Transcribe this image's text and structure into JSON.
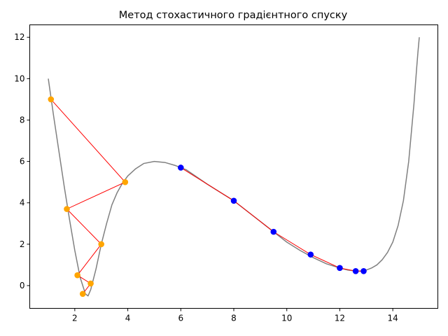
{
  "chart_data": {
    "type": "line",
    "title": "Метод стохастичного градієнтного спуску",
    "xlabel": "",
    "ylabel": "",
    "xlim": [
      0.3,
      15.7
    ],
    "ylim": [
      -1.1,
      12.6
    ],
    "xticks": [
      2,
      4,
      6,
      8,
      10,
      12,
      14
    ],
    "yticks": [
      0,
      2,
      4,
      6,
      8,
      10,
      12
    ],
    "grid": false,
    "legend": "none",
    "colors": {
      "curve": "#808080",
      "path": "#ff0000",
      "path_a_points": "#ffa500",
      "path_b_points": "#0000ff"
    },
    "series": [
      {
        "x": [
          1.0,
          1.2,
          1.4,
          1.6,
          1.8,
          2.0,
          2.2,
          2.4,
          2.5,
          2.6,
          2.8,
          3.0,
          3.2,
          3.4,
          3.6,
          3.8,
          4.0,
          4.3,
          4.6,
          5.0,
          5.4,
          5.8,
          6.2,
          6.6,
          7.0,
          7.5,
          8.0,
          8.5,
          9.0,
          9.5,
          10.0,
          10.5,
          11.0,
          11.5,
          12.0,
          12.3,
          12.6,
          12.8,
          13.0,
          13.2,
          13.4,
          13.6,
          13.8,
          14.0,
          14.2,
          14.4,
          14.6,
          14.8,
          14.9,
          14.95,
          15.0
        ],
        "y": [
          10.0,
          8.2,
          6.5,
          4.8,
          3.2,
          1.7,
          0.4,
          -0.4,
          -0.5,
          -0.2,
          0.8,
          2.0,
          3.0,
          3.9,
          4.5,
          4.95,
          5.3,
          5.65,
          5.9,
          6.0,
          5.95,
          5.8,
          5.6,
          5.25,
          4.9,
          4.5,
          4.1,
          3.6,
          3.1,
          2.6,
          2.1,
          1.7,
          1.35,
          1.05,
          0.85,
          0.75,
          0.7,
          0.7,
          0.75,
          0.85,
          1.0,
          1.25,
          1.6,
          2.1,
          2.9,
          4.1,
          6.0,
          8.8,
          10.5,
          11.3,
          12.0
        ]
      },
      {
        "x": [
          1.1,
          3.9,
          1.7,
          3.0,
          2.1,
          2.6,
          2.3
        ],
        "y": [
          9.0,
          5.0,
          3.7,
          2.0,
          0.5,
          0.1,
          -0.4
        ]
      },
      {
        "x": [
          6.0,
          8.0,
          9.5,
          10.9,
          12.0,
          12.6,
          12.9
        ],
        "y": [
          5.7,
          4.1,
          2.6,
          1.5,
          0.85,
          0.7,
          0.7
        ]
      }
    ]
  }
}
